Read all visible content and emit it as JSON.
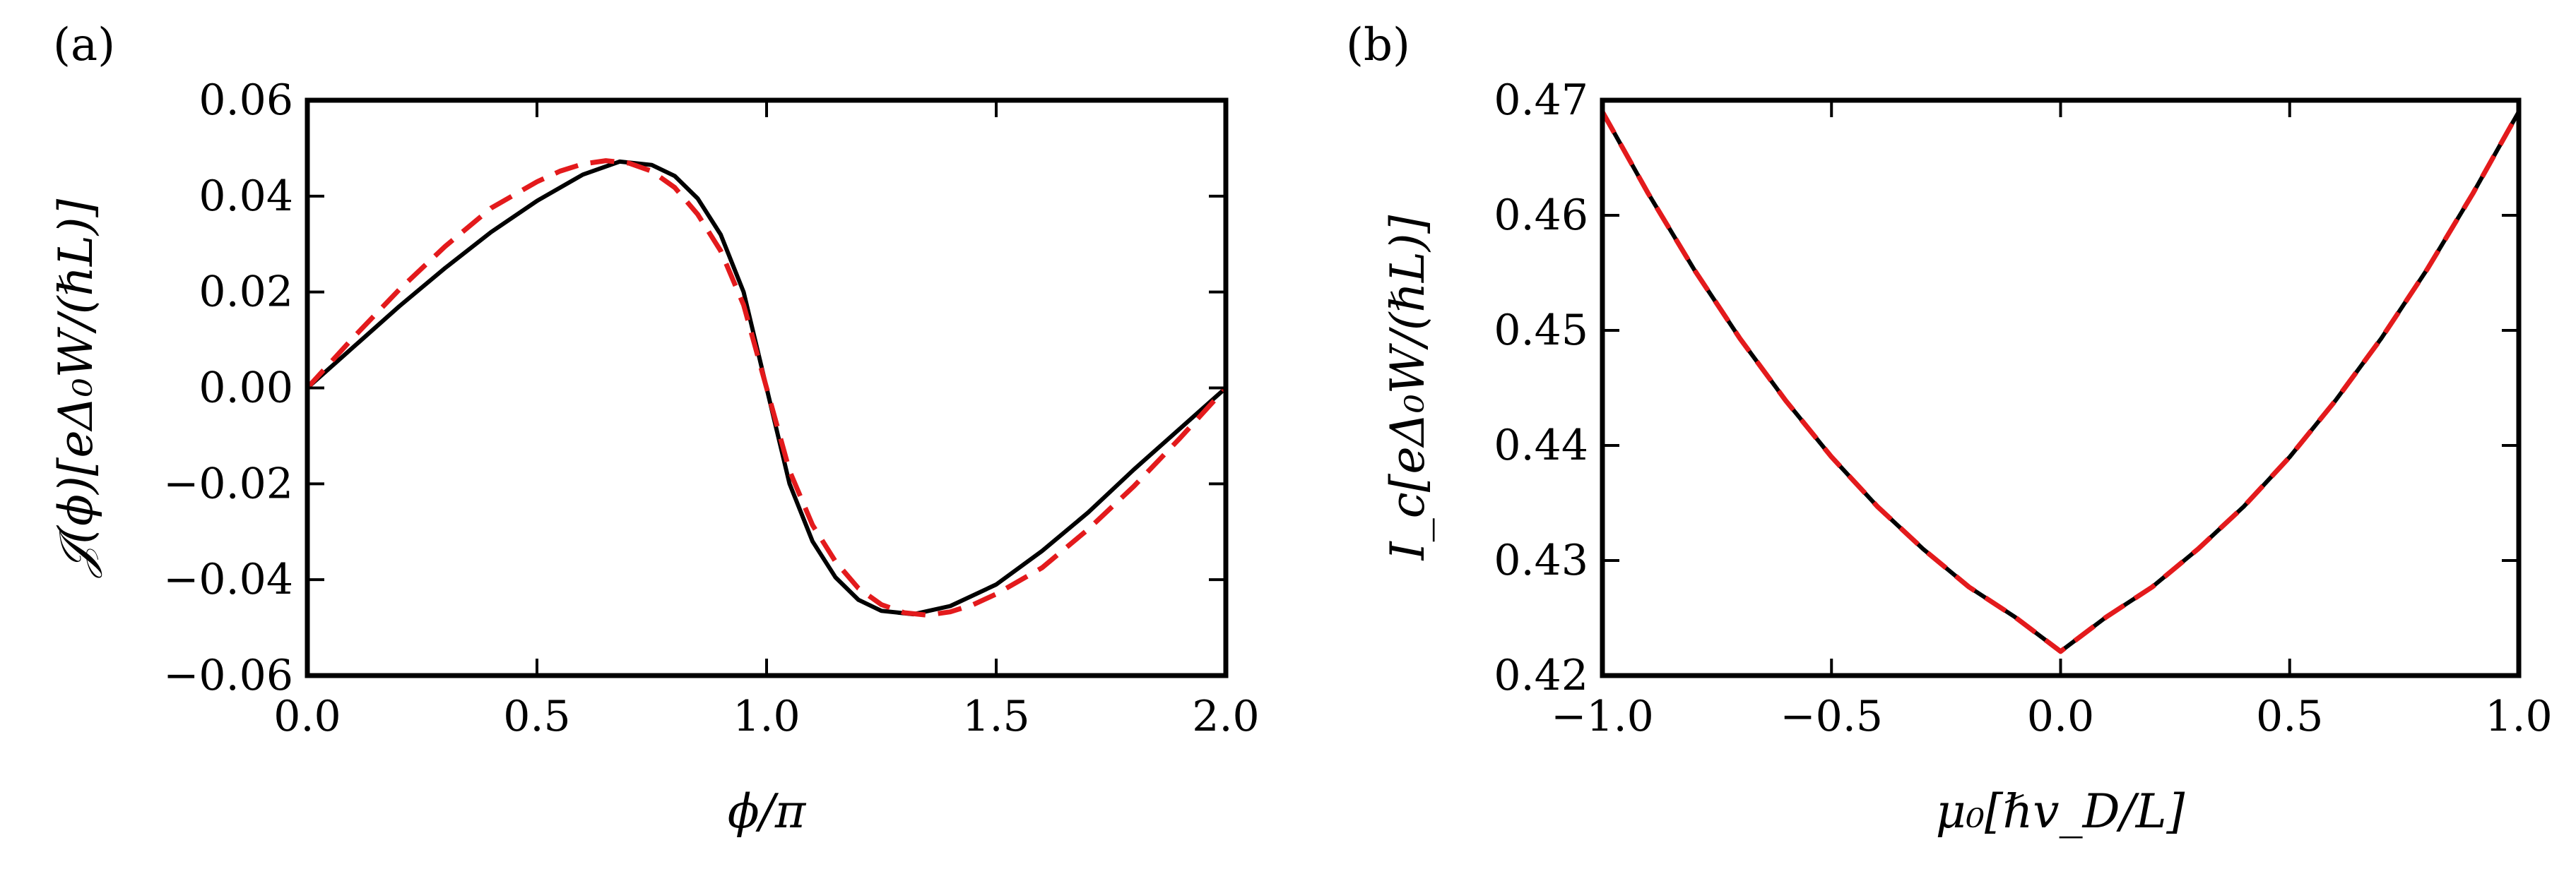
{
  "chart_data": [
    {
      "type": "line",
      "panel_label": "(a)",
      "xlabel": "ϕ/π",
      "ylabel": "𝒥(ϕ)[eΔ₀W/(ℏL)]",
      "xlim": [
        0.0,
        2.0
      ],
      "ylim": [
        -0.06,
        0.06
      ],
      "xticks": [
        "0.0",
        "0.5",
        "1.0",
        "1.5",
        "2.0"
      ],
      "yticks": [
        "−0.06",
        "−0.04",
        "−0.02",
        "0.00",
        "0.02",
        "0.04",
        "0.06"
      ],
      "series": [
        {
          "name": "solid",
          "color": "#000000",
          "style": "solid",
          "x": [
            0.0,
            0.1,
            0.2,
            0.3,
            0.4,
            0.5,
            0.6,
            0.68,
            0.75,
            0.8,
            0.85,
            0.9,
            0.95,
            1.0,
            1.05,
            1.1,
            1.15,
            1.2,
            1.25,
            1.32,
            1.4,
            1.5,
            1.6,
            1.7,
            1.8,
            1.9,
            2.0
          ],
          "y": [
            0.0,
            0.0085,
            0.017,
            0.025,
            0.0325,
            0.039,
            0.0445,
            0.0472,
            0.0465,
            0.0442,
            0.0395,
            0.032,
            0.02,
            0.0,
            -0.02,
            -0.032,
            -0.0395,
            -0.0442,
            -0.0465,
            -0.0472,
            -0.0455,
            -0.041,
            -0.034,
            -0.026,
            -0.017,
            -0.0085,
            0.0
          ]
        },
        {
          "name": "dashed",
          "color": "#e31a1c",
          "style": "dashed",
          "x": [
            0.0,
            0.1,
            0.2,
            0.3,
            0.4,
            0.5,
            0.55,
            0.6,
            0.65,
            0.7,
            0.75,
            0.8,
            0.85,
            0.9,
            0.95,
            1.0,
            1.05,
            1.1,
            1.15,
            1.2,
            1.25,
            1.3,
            1.35,
            1.4,
            1.45,
            1.5,
            1.6,
            1.7,
            1.8,
            1.9,
            2.0
          ],
          "y": [
            0.0,
            0.0105,
            0.0205,
            0.0295,
            0.0375,
            0.043,
            0.0452,
            0.0467,
            0.0474,
            0.0469,
            0.0452,
            0.0418,
            0.0362,
            0.0286,
            0.0173,
            0.0,
            -0.0173,
            -0.0286,
            -0.0362,
            -0.0418,
            -0.0452,
            -0.0469,
            -0.0474,
            -0.0467,
            -0.0452,
            -0.043,
            -0.0375,
            -0.0295,
            -0.0205,
            -0.0105,
            0.0
          ]
        }
      ]
    },
    {
      "type": "line",
      "panel_label": "(b)",
      "xlabel": "μ₀[ℏv_D/L]",
      "ylabel": "I_c[eΔ₀W/(ℏL)]",
      "xlim": [
        -1.0,
        1.0
      ],
      "ylim": [
        0.42,
        0.47
      ],
      "xticks": [
        "−1.0",
        "−0.5",
        "0.0",
        "0.5",
        "1.0"
      ],
      "yticks": [
        "0.42",
        "0.43",
        "0.44",
        "0.45",
        "0.46",
        "0.47"
      ],
      "series": [
        {
          "name": "solid",
          "color": "#000000",
          "style": "solid",
          "x": [
            -1.0,
            -0.9,
            -0.8,
            -0.7,
            -0.6,
            -0.5,
            -0.4,
            -0.3,
            -0.2,
            -0.1,
            0.0,
            0.1,
            0.2,
            0.3,
            0.4,
            0.5,
            0.6,
            0.7,
            0.8,
            0.9,
            1.0
          ],
          "y": [
            0.469,
            0.4619,
            0.4553,
            0.4493,
            0.4439,
            0.439,
            0.4347,
            0.431,
            0.4277,
            0.4251,
            0.4221,
            0.4251,
            0.4277,
            0.431,
            0.4347,
            0.439,
            0.4439,
            0.4493,
            0.4553,
            0.4619,
            0.469
          ]
        },
        {
          "name": "dashed",
          "color": "#e31a1c",
          "style": "dashed",
          "x": [
            -1.0,
            -0.9,
            -0.8,
            -0.7,
            -0.6,
            -0.5,
            -0.4,
            -0.3,
            -0.2,
            -0.1,
            0.0,
            0.1,
            0.2,
            0.3,
            0.4,
            0.5,
            0.6,
            0.7,
            0.8,
            0.9,
            1.0
          ],
          "y": [
            0.469,
            0.4619,
            0.4553,
            0.4493,
            0.4439,
            0.439,
            0.4347,
            0.431,
            0.4277,
            0.4251,
            0.4221,
            0.4251,
            0.4277,
            0.431,
            0.4347,
            0.439,
            0.4439,
            0.4493,
            0.4553,
            0.4619,
            0.469
          ]
        }
      ]
    }
  ]
}
